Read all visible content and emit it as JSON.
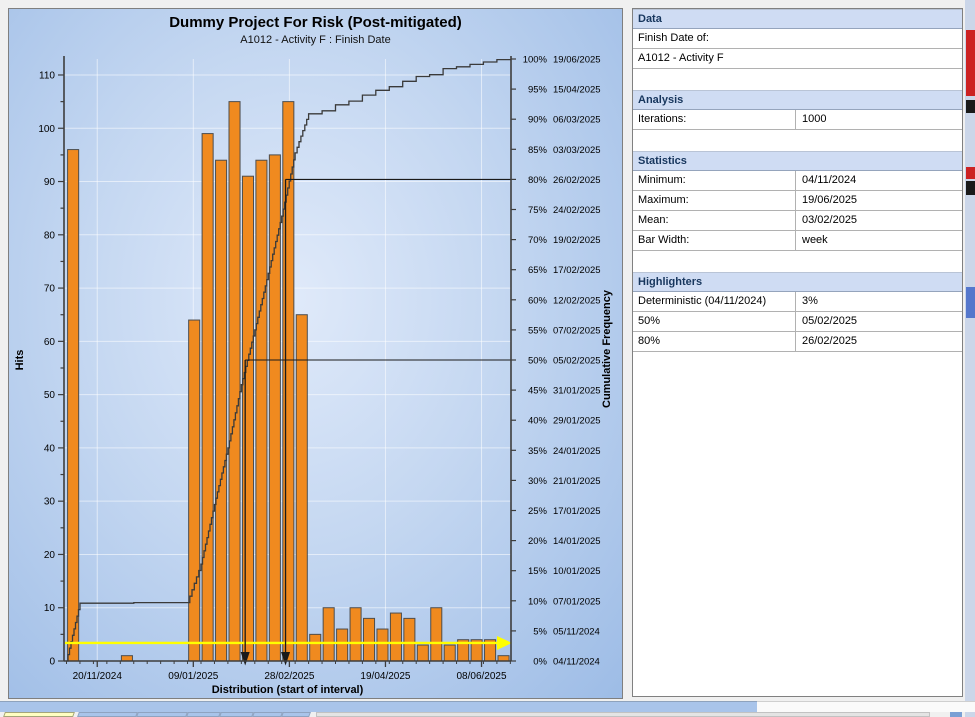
{
  "chart": {
    "title": "Dummy Project For Risk (Post-mitigated)",
    "subtitle": "A1012 - Activity F : Finish Date",
    "x_axis_title": "Distribution (start of interval)",
    "y_left_title": "Hits",
    "y_right_title": "Cumulative Frequency",
    "y_left_tick_labels": [
      "0",
      "10",
      "20",
      "30",
      "40",
      "50",
      "60",
      "70",
      "80",
      "90",
      "100",
      "110"
    ],
    "x_tick_labels": [
      "20/11/2024",
      "09/01/2025",
      "28/02/2025",
      "19/04/2025",
      "08/06/2025"
    ],
    "x_tick_day_offsets": [
      16,
      66,
      116,
      166,
      216
    ]
  },
  "chart_data": {
    "type": "bar",
    "title": "Dummy Project For Risk (Post-mitigated)",
    "subtitle": "A1012 - Activity F : Finish Date",
    "xlabel": "Distribution (start of interval)",
    "ylabel": "Hits",
    "ylabel_right": "Cumulative Frequency",
    "bar_width": "week",
    "ylim": [
      0,
      113
    ],
    "categories": [
      "04/11/2024",
      "11/11/2024",
      "18/11/2024",
      "25/11/2024",
      "02/12/2024",
      "09/12/2024",
      "16/12/2024",
      "23/12/2024",
      "30/12/2024",
      "06/01/2025",
      "13/01/2025",
      "20/01/2025",
      "27/01/2025",
      "03/02/2025",
      "10/02/2025",
      "17/02/2025",
      "24/02/2025",
      "03/03/2025",
      "10/03/2025",
      "17/03/2025",
      "24/03/2025",
      "31/03/2025",
      "07/04/2025",
      "14/04/2025",
      "21/04/2025",
      "28/04/2025",
      "05/05/2025",
      "12/05/2025",
      "19/05/2025",
      "26/05/2025",
      "02/06/2025",
      "09/06/2025",
      "16/06/2025"
    ],
    "values": [
      96,
      0,
      0,
      0,
      1,
      0,
      0,
      0,
      0,
      64,
      99,
      94,
      105,
      91,
      94,
      95,
      105,
      65,
      5,
      10,
      6,
      10,
      8,
      6,
      9,
      8,
      3,
      10,
      3,
      4,
      4,
      4,
      1
    ],
    "cumulative_pct": [
      9.6,
      9.6,
      9.6,
      9.6,
      9.7,
      9.7,
      9.7,
      9.7,
      9.7,
      16.1,
      26.0,
      35.4,
      45.9,
      55.0,
      64.4,
      73.9,
      84.4,
      90.9,
      91.4,
      92.4,
      93.0,
      94.0,
      94.8,
      95.4,
      96.3,
      97.1,
      97.4,
      98.4,
      98.7,
      99.1,
      99.5,
      99.9,
      100.0
    ],
    "right_axis_ticks": [
      {
        "pct": "0%",
        "date": "04/11/2024"
      },
      {
        "pct": "5%",
        "date": "05/11/2024"
      },
      {
        "pct": "10%",
        "date": "07/01/2025"
      },
      {
        "pct": "15%",
        "date": "10/01/2025"
      },
      {
        "pct": "20%",
        "date": "14/01/2025"
      },
      {
        "pct": "25%",
        "date": "17/01/2025"
      },
      {
        "pct": "30%",
        "date": "21/01/2025"
      },
      {
        "pct": "35%",
        "date": "24/01/2025"
      },
      {
        "pct": "40%",
        "date": "29/01/2025"
      },
      {
        "pct": "45%",
        "date": "31/01/2025"
      },
      {
        "pct": "50%",
        "date": "05/02/2025"
      },
      {
        "pct": "55%",
        "date": "07/02/2025"
      },
      {
        "pct": "60%",
        "date": "12/02/2025"
      },
      {
        "pct": "65%",
        "date": "17/02/2025"
      },
      {
        "pct": "70%",
        "date": "19/02/2025"
      },
      {
        "pct": "75%",
        "date": "24/02/2025"
      },
      {
        "pct": "80%",
        "date": "26/02/2025"
      },
      {
        "pct": "85%",
        "date": "03/03/2025"
      },
      {
        "pct": "90%",
        "date": "06/03/2025"
      },
      {
        "pct": "95%",
        "date": "15/04/2025"
      },
      {
        "pct": "100%",
        "date": "19/06/2025"
      }
    ],
    "highlighters": [
      {
        "name": "Deterministic (04/11/2024)",
        "pct": 3,
        "style": "horizontal-yellow"
      },
      {
        "name": "50%",
        "date": "05/02/2025",
        "pct": 50,
        "day_offset": 93,
        "style": "crosshair"
      },
      {
        "name": "80%",
        "date": "26/02/2025",
        "pct": 80,
        "day_offset": 114,
        "style": "crosshair"
      }
    ],
    "colors": {
      "bar_fill": "#f08a1f",
      "bar_stroke": "#4d4d4d",
      "curve": "#3a3a3a",
      "highlighter_yellow": "#ffff00",
      "highlighter_black": "#1a1a1a",
      "gridline": "rgba(255,255,255,0.55)",
      "axis": "#3d3d3d"
    }
  },
  "panel": {
    "sections": [
      {
        "header": "Data",
        "rows": [
          {
            "label": "Finish Date of:",
            "value": null
          },
          {
            "label": "A1012 - Activity F",
            "value": null
          }
        ]
      },
      {
        "header": "Analysis",
        "rows": [
          {
            "label": "Iterations:",
            "value": "1000"
          }
        ]
      },
      {
        "header": "Statistics",
        "rows": [
          {
            "label": "Minimum:",
            "value": "04/11/2024"
          },
          {
            "label": "Maximum:",
            "value": "19/06/2025"
          },
          {
            "label": "Mean:",
            "value": "03/02/2025"
          },
          {
            "label": "Bar Width:",
            "value": "week"
          }
        ]
      },
      {
        "header": "Highlighters",
        "rows": [
          {
            "label": "Deterministic (04/11/2024)",
            "value": "3%"
          },
          {
            "label": "50%",
            "value": "05/02/2025"
          },
          {
            "label": "80%",
            "value": "26/02/2025"
          }
        ]
      }
    ]
  },
  "bottom_tabs": {
    "tab_count": 7,
    "active_tab_color": "#ffffc2",
    "tab_color": "#a9c4ea"
  }
}
